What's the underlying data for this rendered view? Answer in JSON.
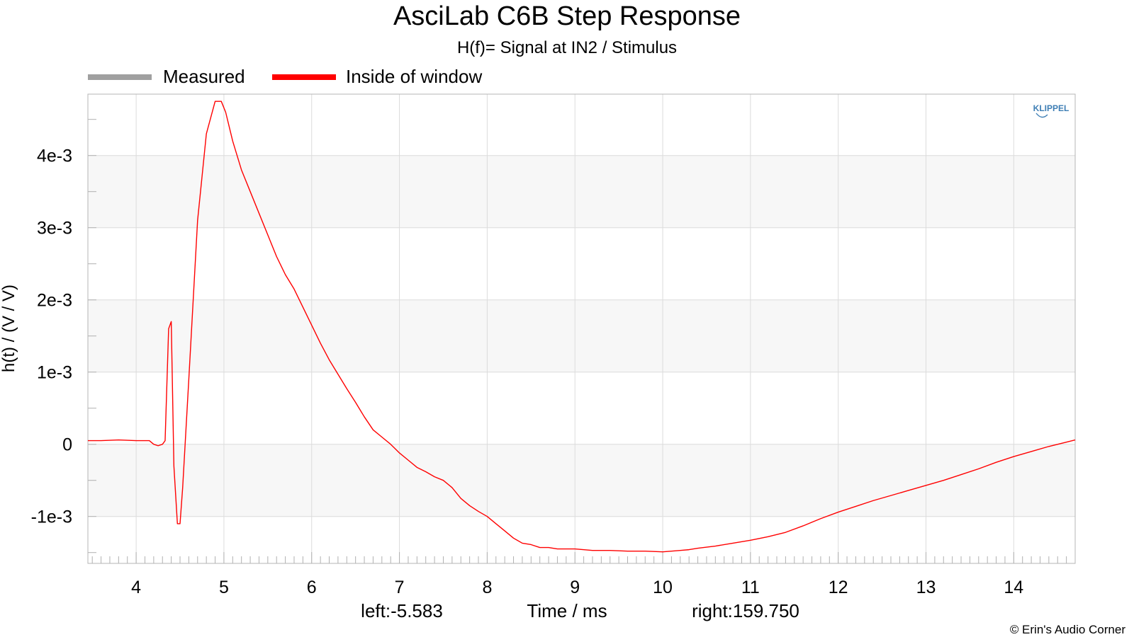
{
  "title": "AsciLab C6B Step Response",
  "subtitle": "H(f)= Signal at IN2 / Stimulus",
  "legend": {
    "items": [
      {
        "label": "Measured",
        "color": "#a0a0a0"
      },
      {
        "label": "Inside of window",
        "color": "#ff0000"
      }
    ]
  },
  "logo": {
    "text": "KLIPPEL",
    "color": "#3f7fb5"
  },
  "copyright": "© Erin's Audio Corner",
  "chart_data": {
    "type": "line",
    "title": "AsciLab C6B Step Response",
    "subtitle": "H(f)= Signal at IN2 / Stimulus",
    "xlabel": "Time / ms",
    "ylabel": "h(t) / (V / V)",
    "xlim": [
      3.45,
      14.7
    ],
    "ylim": [
      -0.00165,
      0.00485
    ],
    "x_ticks": [
      4,
      5,
      6,
      7,
      8,
      9,
      10,
      11,
      12,
      13,
      14
    ],
    "x_tick_labels": [
      "4",
      "5",
      "6",
      "7",
      "8",
      "9",
      "10",
      "11",
      "12",
      "13",
      "14"
    ],
    "y_ticks": [
      -0.001,
      0,
      0.001,
      0.002,
      0.003,
      0.004
    ],
    "y_tick_labels": [
      "-1e-3",
      "0",
      "1e-3",
      "2e-3",
      "3e-3",
      "4e-3"
    ],
    "bottom_annotations": {
      "left": "left:-5.583",
      "right": "right:159.750"
    },
    "grid": true,
    "series": [
      {
        "name": "Inside of window",
        "color": "#ff0000",
        "x": [
          3.45,
          3.6,
          3.8,
          4.0,
          4.15,
          4.2,
          4.25,
          4.3,
          4.33,
          4.37,
          4.4,
          4.43,
          4.47,
          4.5,
          4.53,
          4.6,
          4.7,
          4.8,
          4.9,
          4.97,
          5.02,
          5.1,
          5.2,
          5.3,
          5.4,
          5.5,
          5.6,
          5.7,
          5.8,
          5.9,
          6.0,
          6.1,
          6.2,
          6.3,
          6.4,
          6.5,
          6.6,
          6.7,
          6.8,
          6.9,
          7.0,
          7.1,
          7.2,
          7.3,
          7.4,
          7.5,
          7.6,
          7.7,
          7.8,
          7.9,
          8.0,
          8.1,
          8.2,
          8.3,
          8.4,
          8.5,
          8.6,
          8.7,
          8.8,
          8.9,
          9.0,
          9.2,
          9.4,
          9.6,
          9.8,
          10.0,
          10.1,
          10.2,
          10.3,
          10.4,
          10.6,
          10.8,
          11.0,
          11.2,
          11.4,
          11.6,
          11.8,
          12.0,
          12.2,
          12.4,
          12.6,
          12.8,
          13.0,
          13.2,
          13.4,
          13.6,
          13.8,
          14.0,
          14.2,
          14.4,
          14.6,
          14.7
        ],
        "values": [
          5e-05,
          5e-05,
          6e-05,
          5e-05,
          5e-05,
          0.0,
          -2e-05,
          0.0,
          5e-05,
          0.0016,
          0.0017,
          -0.0003,
          -0.0011,
          -0.0011,
          -0.0006,
          0.0009,
          0.0031,
          0.0043,
          0.00475,
          0.00475,
          0.0046,
          0.0042,
          0.0038,
          0.0035,
          0.0032,
          0.0029,
          0.0026,
          0.00235,
          0.00215,
          0.0019,
          0.00165,
          0.0014,
          0.00117,
          0.00097,
          0.00077,
          0.00058,
          0.00038,
          0.0002,
          0.0001,
          0.0,
          -0.00012,
          -0.00022,
          -0.00032,
          -0.00038,
          -0.00045,
          -0.0005,
          -0.0006,
          -0.00075,
          -0.00085,
          -0.00093,
          -0.001,
          -0.0011,
          -0.0012,
          -0.0013,
          -0.00137,
          -0.00139,
          -0.00143,
          -0.00143,
          -0.00145,
          -0.00145,
          -0.00145,
          -0.00147,
          -0.00147,
          -0.00148,
          -0.00148,
          -0.00149,
          -0.00148,
          -0.00147,
          -0.00146,
          -0.00144,
          -0.00141,
          -0.00137,
          -0.00133,
          -0.00128,
          -0.00122,
          -0.00113,
          -0.00103,
          -0.00094,
          -0.00086,
          -0.00078,
          -0.00071,
          -0.00064,
          -0.00057,
          -0.0005,
          -0.00042,
          -0.00034,
          -0.00025,
          -0.00017,
          -0.0001,
          -3e-05,
          3e-05,
          6e-05
        ]
      }
    ]
  }
}
